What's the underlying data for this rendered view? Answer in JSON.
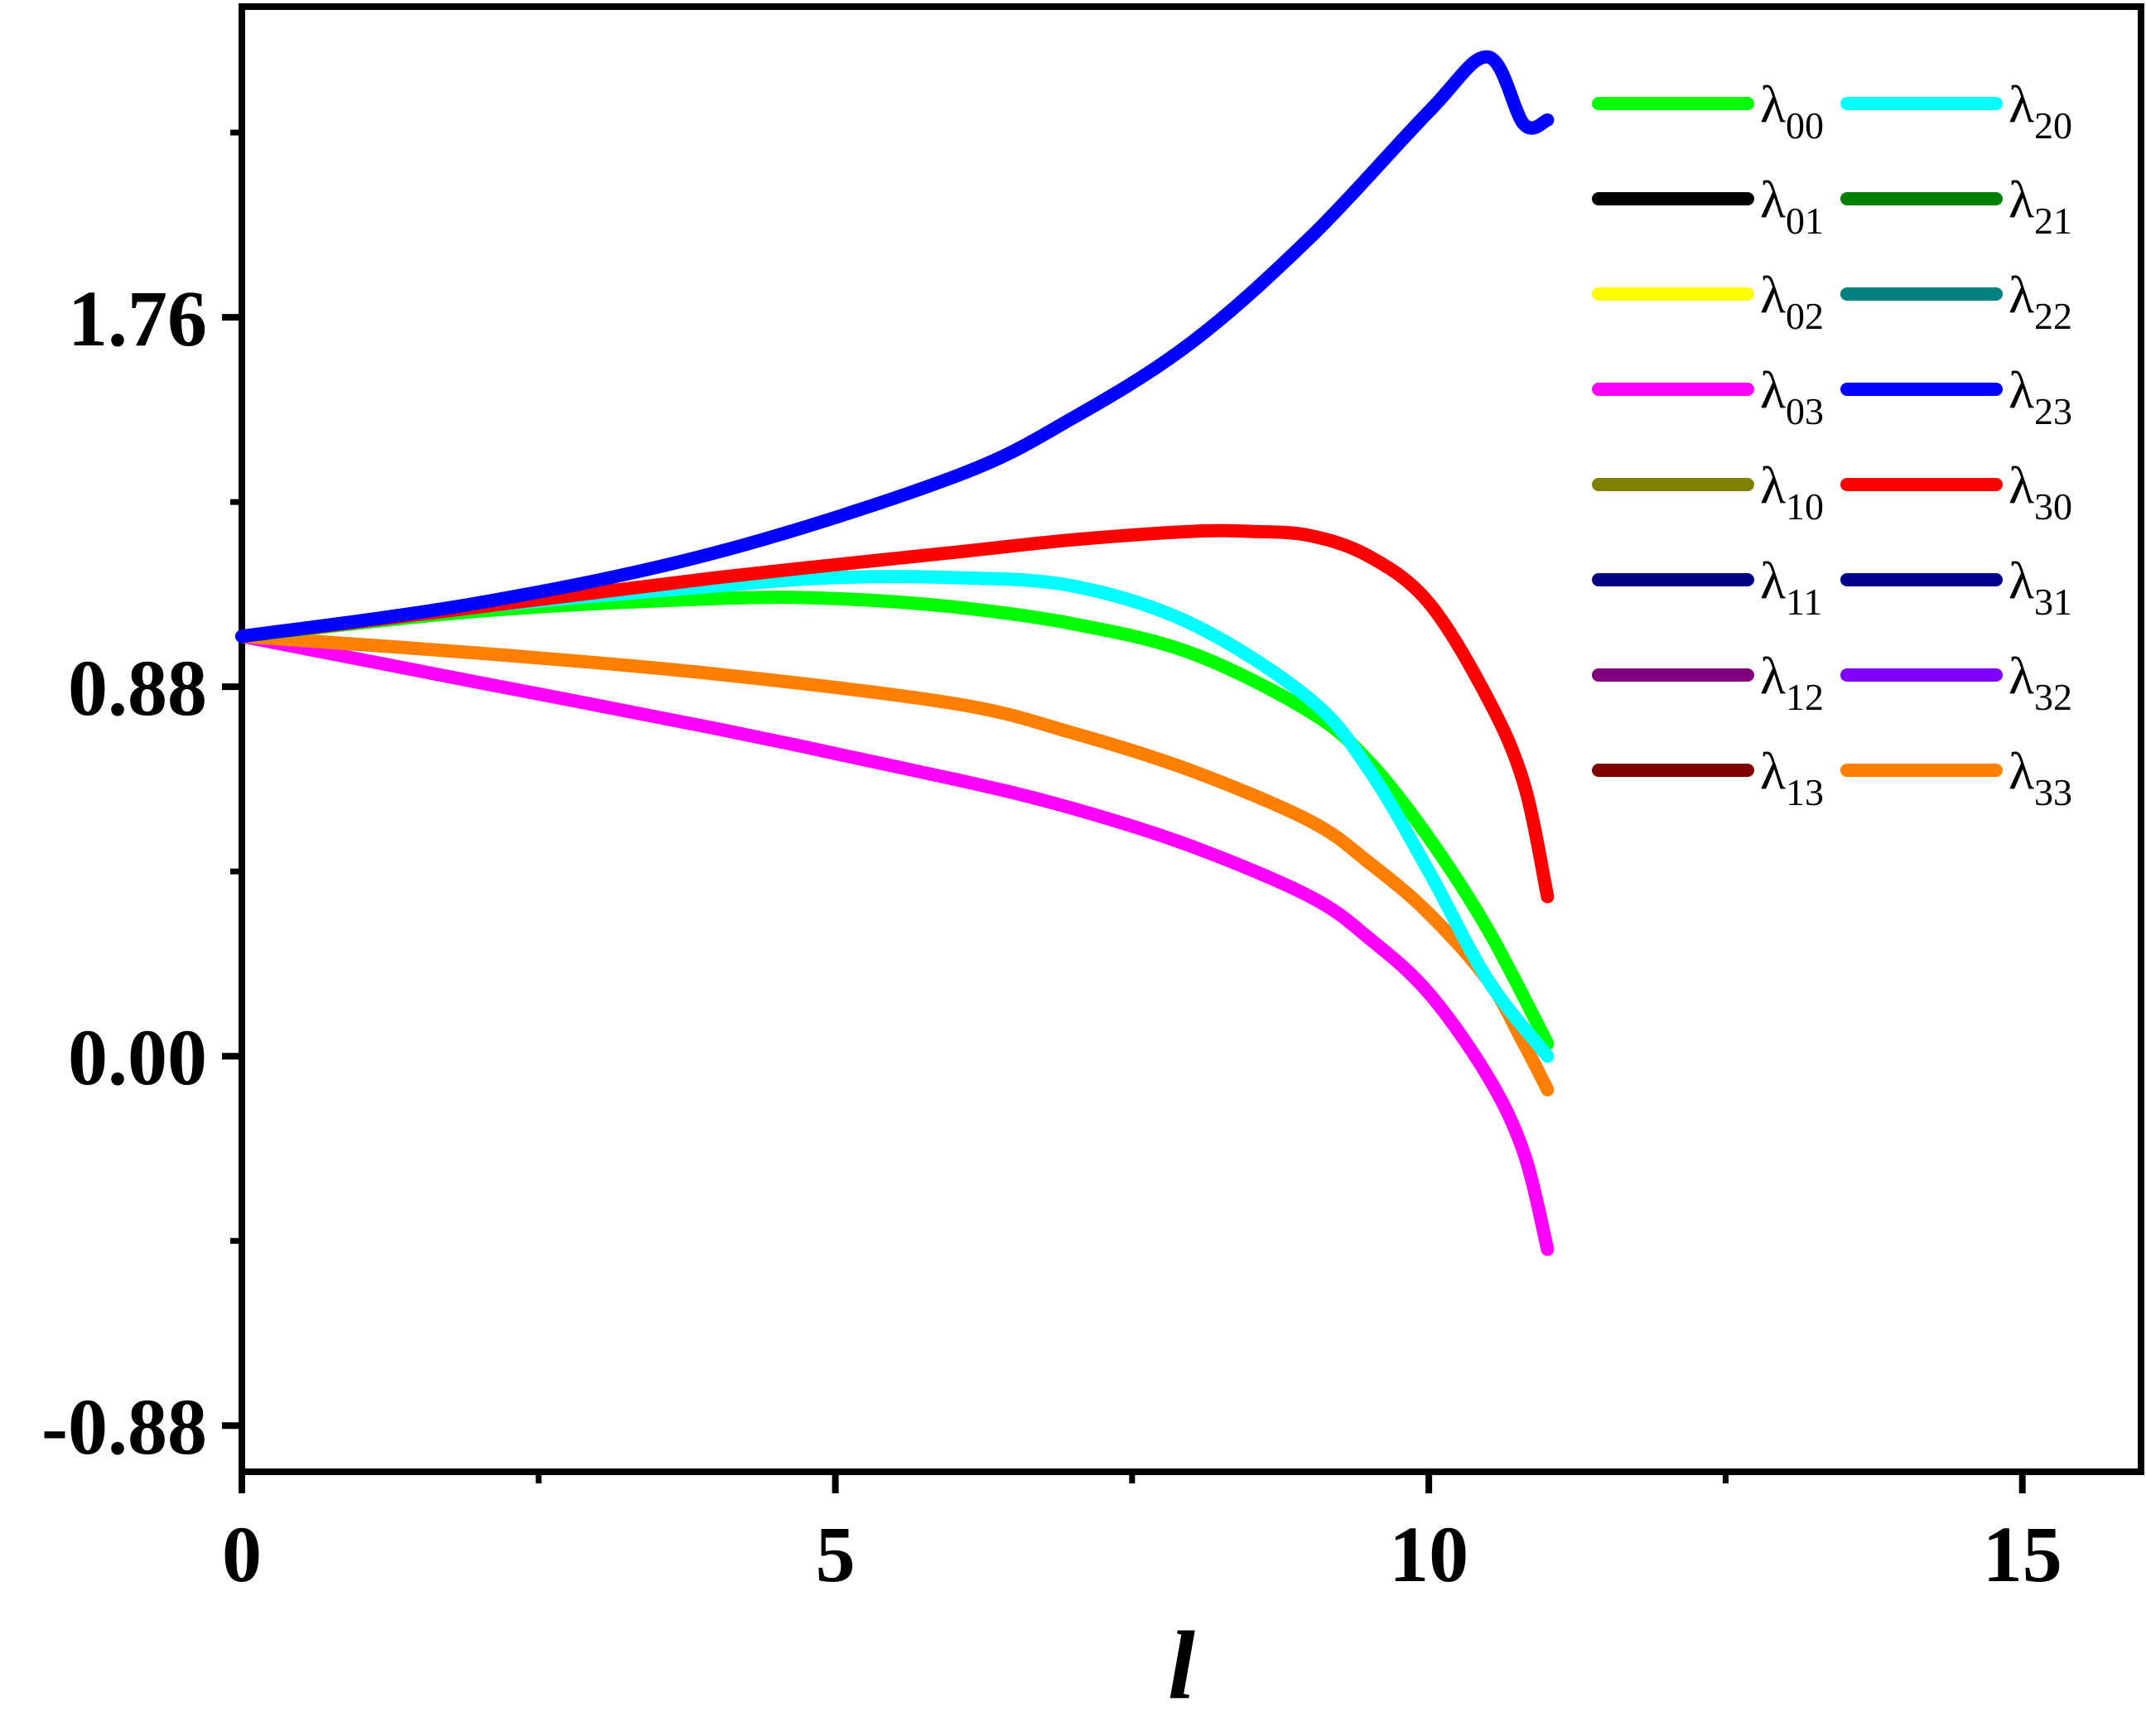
{
  "chart_data": {
    "type": "line",
    "title": "",
    "xlabel": "l",
    "ylabel": "",
    "xlim": [
      0,
      16
    ],
    "ylim": [
      -0.99,
      2.5
    ],
    "x_ticks": [
      "0",
      "5",
      "10",
      "15"
    ],
    "x_tick_values": [
      0,
      5,
      10,
      15
    ],
    "x_minor_ticks": [
      2.5,
      7.5,
      12.5
    ],
    "y_ticks": [
      "-0.88",
      "0.00",
      "0.88",
      "1.76"
    ],
    "y_tick_values": [
      -0.88,
      0.0,
      0.88,
      1.76
    ],
    "y_minor_ticks": [
      -0.44,
      0.44,
      1.32,
      2.2
    ],
    "grid": false,
    "legend_position": "top-right",
    "legend_symbol": "λ",
    "series": [
      {
        "name": "λ00",
        "sub": "00",
        "color": "#00ff00",
        "x": [
          0,
          2,
          4,
          5,
          6,
          7,
          8,
          9,
          9.5,
          10,
          10.5,
          11
        ],
        "y": [
          1.0,
          1.06,
          1.09,
          1.09,
          1.07,
          1.03,
          0.96,
          0.82,
          0.7,
          0.52,
          0.3,
          0.03
        ]
      },
      {
        "name": "λ01",
        "sub": "01",
        "color": "#000000",
        "x": [],
        "y": []
      },
      {
        "name": "λ02",
        "sub": "02",
        "color": "#ffff00",
        "x": [],
        "y": []
      },
      {
        "name": "λ03",
        "sub": "03",
        "color": "#ff00ff",
        "x": [
          0,
          2,
          4,
          6,
          7,
          8,
          9,
          9.5,
          10,
          10.5,
          10.8,
          11
        ],
        "y": [
          1.0,
          0.89,
          0.78,
          0.66,
          0.59,
          0.5,
          0.38,
          0.28,
          0.15,
          -0.05,
          -0.23,
          -0.46
        ]
      },
      {
        "name": "λ10",
        "sub": "10",
        "color": "#808000",
        "x": [],
        "y": []
      },
      {
        "name": "λ11",
        "sub": "11",
        "color": "#000080",
        "x": [],
        "y": []
      },
      {
        "name": "λ12",
        "sub": "12",
        "color": "#800080",
        "x": [],
        "y": []
      },
      {
        "name": "λ13",
        "sub": "13",
        "color": "#800000",
        "x": [],
        "y": []
      },
      {
        "name": "λ20",
        "sub": "20",
        "color": "#00ffff",
        "x": [
          0,
          2,
          4,
          5,
          6,
          7,
          8,
          9,
          9.5,
          10,
          10.5,
          11
        ],
        "y": [
          1.0,
          1.07,
          1.12,
          1.14,
          1.14,
          1.12,
          1.03,
          0.85,
          0.68,
          0.44,
          0.18,
          0.0
        ]
      },
      {
        "name": "λ21",
        "sub": "21",
        "color": "#008000",
        "x": [],
        "y": []
      },
      {
        "name": "λ22",
        "sub": "22",
        "color": "#008080",
        "x": [],
        "y": []
      },
      {
        "name": "λ23",
        "sub": "23",
        "color": "#0000ff",
        "x": [
          0,
          2,
          4,
          6,
          7,
          8,
          9,
          10,
          10.5,
          10.8,
          11
        ],
        "y": [
          1.0,
          1.08,
          1.2,
          1.38,
          1.52,
          1.7,
          1.95,
          2.25,
          2.38,
          2.22,
          2.23
        ]
      },
      {
        "name": "λ30",
        "sub": "30",
        "color": "#ff0000",
        "x": [
          0,
          2,
          4,
          6,
          7,
          8,
          8.5,
          9,
          9.5,
          10,
          10.5,
          10.8,
          11
        ],
        "y": [
          1.0,
          1.07,
          1.14,
          1.2,
          1.23,
          1.25,
          1.25,
          1.24,
          1.19,
          1.08,
          0.85,
          0.65,
          0.38
        ]
      },
      {
        "name": "λ31",
        "sub": "31",
        "color": "#00008b",
        "x": [],
        "y": []
      },
      {
        "name": "λ32",
        "sub": "32",
        "color": "#8000ff",
        "x": [],
        "y": []
      },
      {
        "name": "λ33",
        "sub": "33",
        "color": "#ff8000",
        "x": [
          0,
          2,
          4,
          6,
          7,
          8,
          9,
          9.5,
          10,
          10.5,
          10.8,
          11
        ],
        "y": [
          1.0,
          0.96,
          0.91,
          0.84,
          0.77,
          0.68,
          0.56,
          0.46,
          0.34,
          0.18,
          0.03,
          -0.08
        ]
      }
    ]
  }
}
